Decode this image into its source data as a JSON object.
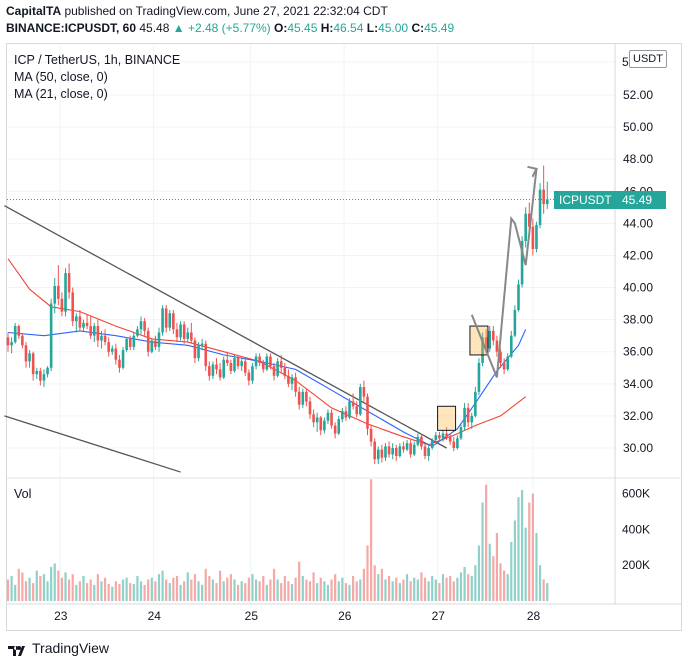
{
  "header": {
    "line1_brand": "CapitalTA",
    "line1_rest": " published on TradingView.com, June 27, 2021 22:32:04 CDT",
    "line2_symbol": "BINANCE:ICPUSDT, 60",
    "line2_last": " 45.48 ",
    "line2_change": "▲ +2.48 (+5.77%)",
    "line2_o_label": " O:",
    "line2_o": "45.45",
    "line2_h_label": " H:",
    "line2_h": "46.54",
    "line2_l_label": " L:",
    "line2_l": "45.00",
    "line2_c_label": " C:",
    "line2_c": "45.49"
  },
  "legend": {
    "title": "ICP / TetherUS, 1h, BINANCE",
    "ma50": "MA (50, close, 0)",
    "ma21": "MA (21, close, 0)"
  },
  "volume_label": "Vol",
  "currency_badge": "USDT",
  "price_tag": {
    "symbol": "ICPUSDT",
    "value": "45.49"
  },
  "footer_logo": "TradingView",
  "colors": {
    "up": "#26a69a",
    "down": "#ef5350",
    "ma50": "#2962ff",
    "ma21": "#f44336",
    "trendline": "#555555",
    "pattern": "#888888"
  },
  "chart_data": {
    "type": "candlestick",
    "interval": "1h",
    "price_axis": {
      "ticks": [
        "5",
        "52.00",
        "50.00",
        "48.00",
        "46.00",
        "44.00",
        "42.00",
        "40.00",
        "38.00",
        "36.00",
        "34.00",
        "32.00",
        "30.00"
      ],
      "range": [
        28.4,
        53.2
      ]
    },
    "volume_axis": {
      "ticks": [
        "600K",
        "400K",
        "200K"
      ],
      "range": [
        0,
        620000
      ]
    },
    "time_axis": {
      "ticks": [
        "23",
        "24",
        "25",
        "26",
        "27",
        "28"
      ]
    },
    "ohlc": [
      [
        36.9,
        37.2,
        36.0,
        36.4
      ],
      [
        36.4,
        36.9,
        35.9,
        36.6
      ],
      [
        36.6,
        37.8,
        36.5,
        37.6
      ],
      [
        37.6,
        37.7,
        36.8,
        37.0
      ],
      [
        37.0,
        37.1,
        36.2,
        36.4
      ],
      [
        36.4,
        36.6,
        35.0,
        35.4
      ],
      [
        35.4,
        36.1,
        35.0,
        35.9
      ],
      [
        35.9,
        36.0,
        34.2,
        34.6
      ],
      [
        34.6,
        35.0,
        34.3,
        34.8
      ],
      [
        34.8,
        35.0,
        33.9,
        34.2
      ],
      [
        34.2,
        34.9,
        33.8,
        34.6
      ],
      [
        34.6,
        35.1,
        34.4,
        35.0
      ],
      [
        35.0,
        39.3,
        34.8,
        39.0
      ],
      [
        39.0,
        40.6,
        38.4,
        40.1
      ],
      [
        40.1,
        41.4,
        38.9,
        39.3
      ],
      [
        39.3,
        39.7,
        38.2,
        38.5
      ],
      [
        38.5,
        41.2,
        38.2,
        40.9
      ],
      [
        40.9,
        41.5,
        39.3,
        39.7
      ],
      [
        39.7,
        40.0,
        37.6,
        37.9
      ],
      [
        37.9,
        38.4,
        37.2,
        38.2
      ],
      [
        38.2,
        38.6,
        37.3,
        37.5
      ],
      [
        37.5,
        38.0,
        37.3,
        37.8
      ],
      [
        37.8,
        38.3,
        37.4,
        37.6
      ],
      [
        37.6,
        38.2,
        36.8,
        37.0
      ],
      [
        37.0,
        37.8,
        36.6,
        37.6
      ],
      [
        37.6,
        38.0,
        36.3,
        36.7
      ],
      [
        36.7,
        37.3,
        36.2,
        37.0
      ],
      [
        37.0,
        37.4,
        36.4,
        36.6
      ],
      [
        36.6,
        36.9,
        35.7,
        36.0
      ],
      [
        36.0,
        36.4,
        35.8,
        36.2
      ],
      [
        36.2,
        36.5,
        35.2,
        35.5
      ],
      [
        35.5,
        35.8,
        34.7,
        35.0
      ],
      [
        35.0,
        36.3,
        34.9,
        36.1
      ],
      [
        36.1,
        36.9,
        36.0,
        36.8
      ],
      [
        36.8,
        37.0,
        36.1,
        36.3
      ],
      [
        36.3,
        37.2,
        36.1,
        37.0
      ],
      [
        37.0,
        37.6,
        36.9,
        37.4
      ],
      [
        37.4,
        38.2,
        37.1,
        37.9
      ],
      [
        37.9,
        38.1,
        37.0,
        37.3
      ],
      [
        37.3,
        37.5,
        35.7,
        36.0
      ],
      [
        36.0,
        36.8,
        35.9,
        36.7
      ],
      [
        36.7,
        37.0,
        36.1,
        36.3
      ],
      [
        36.3,
        37.5,
        36.0,
        37.2
      ],
      [
        37.2,
        38.9,
        37.0,
        38.7
      ],
      [
        38.7,
        38.9,
        37.2,
        37.5
      ],
      [
        37.5,
        38.6,
        37.3,
        38.4
      ],
      [
        38.4,
        38.6,
        37.1,
        37.4
      ],
      [
        37.4,
        37.8,
        36.6,
        36.9
      ],
      [
        36.9,
        37.9,
        36.7,
        37.7
      ],
      [
        37.7,
        37.9,
        36.5,
        36.8
      ],
      [
        36.8,
        37.5,
        36.6,
        37.2
      ],
      [
        37.2,
        37.8,
        36.5,
        36.7
      ],
      [
        36.7,
        36.9,
        35.3,
        35.6
      ],
      [
        35.6,
        36.6,
        35.4,
        36.4
      ],
      [
        36.4,
        36.8,
        36.1,
        36.5
      ],
      [
        36.5,
        36.7,
        34.8,
        35.1
      ],
      [
        35.1,
        35.4,
        34.2,
        34.5
      ],
      [
        34.5,
        35.4,
        34.3,
        35.2
      ],
      [
        35.2,
        35.6,
        34.6,
        34.9
      ],
      [
        34.9,
        35.3,
        34.2,
        34.4
      ],
      [
        34.4,
        35.7,
        34.3,
        35.5
      ],
      [
        35.5,
        36.0,
        35.1,
        35.3
      ],
      [
        35.3,
        35.5,
        34.6,
        34.8
      ],
      [
        34.8,
        35.8,
        34.7,
        35.6
      ],
      [
        35.6,
        35.8,
        34.9,
        35.1
      ],
      [
        35.1,
        35.6,
        34.8,
        35.4
      ],
      [
        35.4,
        35.6,
        34.5,
        34.7
      ],
      [
        34.7,
        34.9,
        33.9,
        34.2
      ],
      [
        34.2,
        35.3,
        34.0,
        35.1
      ],
      [
        35.1,
        35.9,
        34.9,
        35.7
      ],
      [
        35.7,
        35.9,
        35.1,
        35.3
      ],
      [
        35.3,
        35.5,
        34.7,
        34.9
      ],
      [
        34.9,
        35.9,
        34.8,
        35.7
      ],
      [
        35.7,
        35.9,
        34.9,
        35.1
      ],
      [
        35.1,
        35.3,
        34.2,
        34.5
      ],
      [
        34.5,
        35.6,
        34.4,
        35.4
      ],
      [
        35.4,
        35.8,
        34.7,
        35.0
      ],
      [
        35.0,
        35.3,
        34.3,
        34.5
      ],
      [
        34.5,
        34.9,
        33.8,
        34.0
      ],
      [
        34.0,
        34.6,
        33.6,
        34.4
      ],
      [
        34.4,
        34.7,
        33.2,
        33.5
      ],
      [
        33.5,
        33.8,
        32.4,
        32.7
      ],
      [
        32.7,
        33.7,
        32.5,
        33.5
      ],
      [
        33.5,
        33.7,
        32.6,
        32.9
      ],
      [
        32.9,
        33.2,
        31.8,
        32.1
      ],
      [
        32.1,
        32.4,
        31.3,
        31.6
      ],
      [
        31.6,
        32.2,
        31.0,
        31.9
      ],
      [
        31.9,
        32.0,
        30.8,
        31.1
      ],
      [
        31.1,
        31.9,
        30.9,
        31.7
      ],
      [
        31.7,
        32.4,
        31.5,
        32.2
      ],
      [
        32.2,
        32.4,
        31.2,
        31.4
      ],
      [
        31.4,
        31.6,
        30.6,
        30.9
      ],
      [
        30.9,
        32.0,
        30.8,
        31.8
      ],
      [
        31.8,
        32.5,
        31.6,
        32.3
      ],
      [
        32.3,
        32.6,
        31.7,
        31.9
      ],
      [
        31.9,
        33.1,
        31.8,
        32.9
      ],
      [
        32.9,
        33.4,
        32.4,
        32.6
      ],
      [
        32.6,
        32.9,
        31.9,
        32.1
      ],
      [
        32.1,
        34.0,
        32.0,
        33.8
      ],
      [
        33.8,
        34.2,
        32.9,
        33.2
      ],
      [
        33.2,
        33.4,
        30.8,
        31.2
      ],
      [
        31.2,
        31.4,
        30.1,
        30.4
      ],
      [
        30.4,
        30.6,
        29.0,
        29.3
      ],
      [
        29.3,
        30.1,
        29.0,
        29.9
      ],
      [
        29.9,
        30.2,
        29.1,
        29.4
      ],
      [
        29.4,
        30.3,
        29.2,
        30.1
      ],
      [
        30.1,
        30.4,
        29.4,
        29.6
      ],
      [
        29.6,
        30.3,
        29.3,
        30.0
      ],
      [
        30.0,
        30.2,
        29.2,
        29.5
      ],
      [
        29.5,
        30.3,
        29.4,
        30.1
      ],
      [
        30.1,
        30.4,
        29.7,
        29.9
      ],
      [
        29.9,
        30.5,
        29.8,
        30.3
      ],
      [
        30.3,
        30.5,
        29.4,
        29.6
      ],
      [
        29.6,
        30.4,
        29.5,
        30.2
      ],
      [
        30.2,
        30.9,
        30.1,
        30.7
      ],
      [
        30.7,
        30.9,
        29.9,
        30.1
      ],
      [
        30.1,
        30.3,
        29.3,
        29.5
      ],
      [
        29.5,
        30.2,
        29.2,
        30.0
      ],
      [
        30.0,
        30.6,
        29.9,
        30.5
      ],
      [
        30.5,
        31.0,
        30.3,
        30.8
      ],
      [
        30.8,
        31.0,
        30.4,
        30.6
      ],
      [
        30.6,
        31.1,
        30.4,
        30.9
      ],
      [
        30.9,
        31.3,
        30.5,
        30.7
      ],
      [
        30.7,
        30.9,
        30.2,
        30.4
      ],
      [
        30.4,
        30.7,
        29.8,
        30.0
      ],
      [
        30.0,
        30.8,
        29.9,
        30.6
      ],
      [
        30.6,
        31.5,
        30.5,
        31.3
      ],
      [
        31.3,
        32.8,
        31.1,
        32.5
      ],
      [
        32.5,
        32.8,
        31.3,
        31.6
      ],
      [
        31.6,
        32.2,
        31.2,
        32.0
      ],
      [
        32.0,
        33.8,
        31.9,
        33.5
      ],
      [
        33.5,
        35.6,
        33.3,
        35.3
      ],
      [
        35.3,
        37.2,
        35.1,
        36.9
      ],
      [
        36.9,
        37.4,
        35.9,
        36.2
      ],
      [
        36.2,
        37.6,
        36.0,
        37.3
      ],
      [
        37.3,
        37.6,
        36.4,
        36.7
      ],
      [
        36.7,
        37.0,
        35.7,
        36.0
      ],
      [
        36.0,
        36.2,
        35.0,
        35.3
      ],
      [
        35.3,
        35.6,
        34.6,
        34.9
      ],
      [
        34.9,
        35.9,
        34.8,
        35.7
      ],
      [
        35.7,
        37.3,
        35.6,
        37.0
      ],
      [
        37.0,
        38.9,
        36.9,
        38.6
      ],
      [
        38.6,
        40.5,
        38.5,
        40.2
      ],
      [
        40.2,
        43.2,
        40.0,
        42.9
      ],
      [
        42.9,
        45.0,
        42.5,
        44.6
      ],
      [
        44.6,
        45.3,
        43.5,
        43.8
      ],
      [
        43.8,
        44.3,
        42.0,
        42.4
      ],
      [
        42.4,
        44.1,
        42.2,
        43.9
      ],
      [
        43.9,
        46.5,
        43.7,
        46.1
      ],
      [
        46.1,
        47.6,
        44.6,
        45.2
      ],
      [
        45.2,
        46.6,
        44.9,
        45.5
      ]
    ],
    "ma50_ref": [
      [
        0,
        37.2
      ],
      [
        10,
        37.0
      ],
      [
        20,
        37.3
      ],
      [
        30,
        37.0
      ],
      [
        40,
        36.6
      ],
      [
        50,
        36.4
      ],
      [
        60,
        35.8
      ],
      [
        70,
        35.4
      ],
      [
        80,
        34.9
      ],
      [
        90,
        33.6
      ],
      [
        100,
        32.3
      ],
      [
        110,
        31.0
      ],
      [
        118,
        30.1
      ],
      [
        125,
        31.2
      ],
      [
        130,
        32.8
      ],
      [
        136,
        34.8
      ],
      [
        142,
        36.4
      ],
      [
        144,
        37.4
      ]
    ],
    "ma21_ref": [
      [
        0,
        41.8
      ],
      [
        6,
        39.9
      ],
      [
        12,
        38.8
      ],
      [
        20,
        38.5
      ],
      [
        30,
        37.6
      ],
      [
        40,
        36.8
      ],
      [
        50,
        36.6
      ],
      [
        60,
        36.0
      ],
      [
        70,
        35.4
      ],
      [
        80,
        34.2
      ],
      [
        90,
        32.5
      ],
      [
        100,
        31.5
      ],
      [
        110,
        30.7
      ],
      [
        117,
        30.2
      ],
      [
        124,
        30.8
      ],
      [
        130,
        31.4
      ],
      [
        137,
        32.0
      ],
      [
        144,
        33.2
      ]
    ],
    "trendlines": [
      {
        "from": [
          -1,
          45.1
        ],
        "to": [
          122,
          30.0
        ]
      },
      {
        "from": [
          -1,
          32.0
        ],
        "to": [
          48,
          28.5
        ]
      }
    ],
    "pattern_arrow": [
      [
        129,
        38.3
      ],
      [
        136,
        34.4
      ],
      [
        140,
        44.3
      ],
      [
        141,
        44.0
      ],
      [
        144,
        41.4
      ],
      [
        147,
        47.4
      ]
    ],
    "highlight_boxes": [
      {
        "x0": 119.5,
        "x1": 124.5,
        "y0": 31.1,
        "y1": 32.6
      },
      {
        "x0": 128.5,
        "x1": 133.5,
        "y0": 35.8,
        "y1": 37.6
      }
    ],
    "last_price_line": 45.49,
    "volume": [
      120,
      140,
      90,
      180,
      160,
      110,
      130,
      100,
      170,
      140,
      150,
      110,
      190,
      210,
      170,
      130,
      160,
      120,
      150,
      90,
      110,
      140,
      100,
      120,
      90,
      150,
      110,
      130,
      95,
      80,
      110,
      95,
      120,
      130,
      100,
      95,
      140,
      110,
      90,
      120,
      130,
      110,
      150,
      170,
      120,
      100,
      130,
      140,
      90,
      110,
      160,
      120,
      150,
      110,
      90,
      180,
      140,
      120,
      100,
      170,
      110,
      130,
      150,
      120,
      90,
      110,
      100,
      130,
      150,
      120,
      110,
      140,
      90,
      120,
      180,
      120,
      100,
      140,
      110,
      95,
      130,
      220,
      140,
      120,
      110,
      160,
      100,
      130,
      110,
      90,
      120,
      150,
      110,
      130,
      100,
      90,
      140,
      110,
      120,
      180,
      310,
      680,
      200,
      150,
      180,
      120,
      140,
      110,
      130,
      100,
      120,
      150,
      110,
      130,
      120,
      160,
      130,
      110,
      140,
      120,
      100,
      150,
      130,
      140,
      110,
      130,
      160,
      190,
      150,
      140,
      200,
      310,
      550,
      650,
      320,
      250,
      380,
      210,
      170,
      150,
      330,
      450,
      580,
      620,
      410,
      550,
      600,
      380,
      200,
      120,
      100
    ]
  }
}
